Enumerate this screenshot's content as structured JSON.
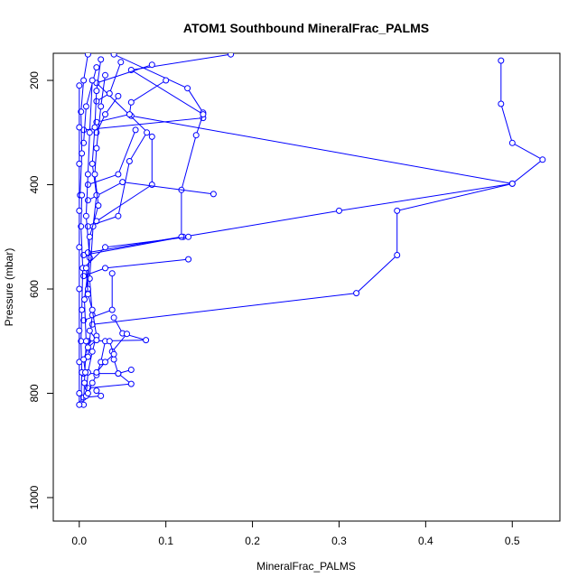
{
  "chart_data": {
    "type": "line",
    "title": "ATOM1 Southbound MineralFrac_PALMS",
    "xlabel": "MineralFrac_PALMS",
    "ylabel": "Pressure (mbar)",
    "xlim": [
      -0.03,
      0.555
    ],
    "ylim": [
      1045,
      148
    ],
    "y_reversed": true,
    "x_ticks": [
      0.0,
      0.1,
      0.2,
      0.3,
      0.4,
      0.5
    ],
    "x_tick_labels": [
      "0.0",
      "0.1",
      "0.2",
      "0.3",
      "0.4",
      "0.5"
    ],
    "y_ticks": [
      200,
      400,
      600,
      800,
      1000
    ],
    "y_tick_labels": [
      "200",
      "400",
      "600",
      "800",
      "1000"
    ],
    "grid": false,
    "legend": "none",
    "marker": "open-circle",
    "color": "#0000ff",
    "series": [
      {
        "points": [
          [
            0.487,
            162
          ],
          [
            0.487,
            245
          ],
          [
            0.5,
            320
          ],
          [
            0.535,
            352
          ],
          [
            0.5,
            398
          ],
          [
            0.367,
            450
          ],
          [
            0.367,
            535
          ],
          [
            0.32,
            608
          ],
          [
            0.015,
            668
          ]
        ]
      },
      {
        "points": [
          [
            0.06,
            268
          ],
          [
            0.5,
            398
          ],
          [
            0.3,
            450
          ],
          [
            0.12,
            500
          ],
          [
            0.005,
            535
          ]
        ]
      },
      {
        "points": [
          [
            0.04,
            150
          ],
          [
            0.125,
            215
          ],
          [
            0.143,
            262
          ],
          [
            0.143,
            272
          ],
          [
            0.005,
            295
          ]
        ]
      },
      {
        "points": [
          [
            0.175,
            150
          ],
          [
            0.06,
            180
          ],
          [
            0.143,
            265
          ],
          [
            0.135,
            305
          ],
          [
            0.118,
            410
          ],
          [
            0.118,
            500
          ],
          [
            0.01,
            530
          ]
        ]
      },
      {
        "points": [
          [
            0.084,
            170
          ],
          [
            0.02,
            205
          ],
          [
            0.084,
            308
          ],
          [
            0.084,
            400
          ],
          [
            0.02,
            470
          ]
        ]
      },
      {
        "points": [
          [
            0.155,
            418
          ],
          [
            0.05,
            395
          ],
          [
            0.01,
            430
          ]
        ]
      },
      {
        "points": [
          [
            0.126,
            500
          ],
          [
            0.03,
            520
          ],
          [
            0.005,
            560
          ]
        ]
      },
      {
        "points": [
          [
            0.126,
            543
          ],
          [
            0.03,
            560
          ],
          [
            0.005,
            575
          ]
        ]
      },
      {
        "points": [
          [
            0.038,
            570
          ],
          [
            0.038,
            640
          ],
          [
            0.005,
            660
          ]
        ]
      },
      {
        "points": [
          [
            0.04,
            655
          ],
          [
            0.05,
            685
          ],
          [
            0.077,
            698
          ],
          [
            0.01,
            700
          ]
        ]
      },
      {
        "points": [
          [
            0.055,
            686
          ],
          [
            0.038,
            720
          ],
          [
            0.04,
            735
          ],
          [
            0.045,
            762
          ],
          [
            0.005,
            762
          ]
        ]
      },
      {
        "points": [
          [
            0.06,
            755
          ],
          [
            0.045,
            762
          ],
          [
            0.06,
            782
          ],
          [
            0.01,
            790
          ]
        ]
      },
      {
        "points": [
          [
            0.02,
            795
          ],
          [
            0.025,
            805
          ],
          [
            0.005,
            808
          ]
        ]
      },
      {
        "points": [
          [
            0.045,
            230
          ],
          [
            0.03,
            265
          ],
          [
            0.02,
            300
          ]
        ]
      },
      {
        "points": [
          [
            0.065,
            295
          ],
          [
            0.045,
            380
          ],
          [
            0.01,
            400
          ]
        ]
      },
      {
        "points": [
          [
            0.078,
            300
          ],
          [
            0.058,
            355
          ],
          [
            0.045,
            460
          ],
          [
            0.01,
            480
          ]
        ]
      },
      {
        "points": [
          [
            0.1,
            200
          ],
          [
            0.06,
            242
          ],
          [
            0.058,
            265
          ],
          [
            0.02,
            280
          ]
        ]
      },
      {
        "points": [
          [
            0.048,
            165
          ],
          [
            0.035,
            225
          ],
          [
            0.02,
            240
          ]
        ]
      },
      {
        "points": [
          [
            0.02,
            175
          ],
          [
            0.008,
            250
          ],
          [
            0.005,
            320
          ]
        ]
      },
      {
        "points": [
          [
            0.01,
            150
          ],
          [
            0.005,
            200
          ],
          [
            0.002,
            260
          ],
          [
            0.003,
            340
          ],
          [
            0.001,
            420
          ]
        ]
      },
      {
        "points": [
          [
            0.003,
            420
          ],
          [
            0.002,
            480
          ],
          [
            0.004,
            560
          ],
          [
            0.003,
            640
          ],
          [
            0.002,
            700
          ],
          [
            0.003,
            760
          ],
          [
            0.002,
            820
          ]
        ]
      },
      {
        "points": [
          [
            0.015,
            200
          ],
          [
            0.012,
            300
          ],
          [
            0.01,
            380
          ],
          [
            0.008,
            460
          ],
          [
            0.012,
            540
          ],
          [
            0.006,
            620
          ],
          [
            0.008,
            700
          ],
          [
            0.006,
            780
          ],
          [
            0.005,
            822
          ]
        ]
      },
      {
        "points": [
          [
            0.025,
            160
          ],
          [
            0.02,
            220
          ],
          [
            0.018,
            290
          ],
          [
            0.015,
            360
          ],
          [
            0.02,
            420
          ],
          [
            0.016,
            480
          ],
          [
            0.012,
            580
          ],
          [
            0.015,
            650
          ],
          [
            0.01,
            730
          ]
        ]
      },
      {
        "points": [
          [
            0.03,
            190
          ],
          [
            0.025,
            250
          ],
          [
            0.02,
            330
          ],
          [
            0.018,
            380
          ],
          [
            0.022,
            440
          ],
          [
            0.012,
            500
          ],
          [
            0.01,
            600
          ]
        ]
      },
      {
        "points": [
          [
            0.0,
            210
          ],
          [
            0.0,
            290
          ],
          [
            0.0,
            360
          ],
          [
            0.0,
            450
          ],
          [
            0.0,
            520
          ],
          [
            0.0,
            600
          ],
          [
            0.0,
            680
          ],
          [
            0.0,
            740
          ],
          [
            0.0,
            800
          ],
          [
            0.0,
            822
          ]
        ]
      },
      {
        "points": [
          [
            0.008,
            560
          ],
          [
            0.01,
            610
          ],
          [
            0.015,
            640
          ],
          [
            0.02,
            690
          ],
          [
            0.015,
            720
          ],
          [
            0.01,
            760
          ],
          [
            0.008,
            805
          ]
        ]
      },
      {
        "points": [
          [
            0.03,
            700
          ],
          [
            0.025,
            740
          ],
          [
            0.02,
            765
          ],
          [
            0.015,
            780
          ],
          [
            0.01,
            800
          ]
        ]
      },
      {
        "points": [
          [
            0.035,
            700
          ],
          [
            0.04,
            725
          ],
          [
            0.03,
            740
          ],
          [
            0.02,
            760
          ]
        ]
      },
      {
        "points": [
          [
            0.012,
            680
          ],
          [
            0.02,
            698
          ],
          [
            0.01,
            712
          ],
          [
            0.005,
            735
          ],
          [
            0.007,
            760
          ]
        ]
      }
    ]
  }
}
